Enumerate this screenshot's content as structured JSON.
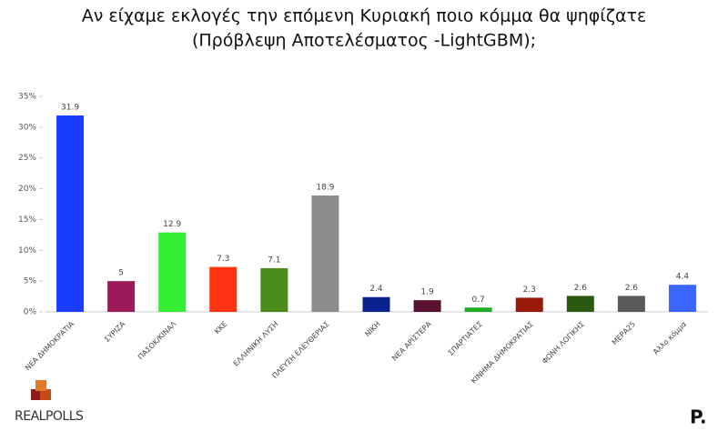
{
  "chart_data": {
    "type": "bar",
    "title": [
      "Αν είχαμε εκλογές την επόμενη Κυριακή ποιο κόμμα θα ψηφίζατε",
      "(Πρόβλεψη Αποτελέσματος -LightGBM);"
    ],
    "categories": [
      "ΝΕΑ ΔΗΜΟΚΡΑΤΙΑ",
      "ΣΥΡΙΖΑ",
      "ΠΑΣΟΚ/ΚΙΝΑΛ",
      "ΚΚΕ",
      "ΕΛΛΗΝΙΚΗ ΛΥΣΗ",
      "ΠΛΕΥΣΗ ΕΛΕΥΘΕΡΙΑΣ",
      "ΝΙΚΗ",
      "ΝΕΑ ΑΡΙΣΤΕΡΑ",
      "ΣΠΑΡΤΙΑΤΕΣ",
      "ΚΙΝΗΜΑ ΔΗΜΟΚΡΑΤΙΑΣ",
      "ΦΩΝΗ ΛΟΓΙΚΗΣ",
      "ΜΕΡΑ25",
      "Άλλο κόμμα"
    ],
    "values": [
      31.9,
      5,
      12.9,
      7.3,
      7.1,
      18.9,
      2.4,
      1.9,
      0.7,
      2.3,
      2.6,
      2.6,
      4.4
    ],
    "colors": [
      "#1a3cff",
      "#9b1b5a",
      "#33ee33",
      "#ff3311",
      "#4a8c1c",
      "#8c8c8c",
      "#0a2290",
      "#5a1030",
      "#22aa22",
      "#991a0a",
      "#2a5a10",
      "#5a5a5a",
      "#3a66ff"
    ],
    "ylim": [
      0,
      35
    ],
    "yticks": [
      {
        "value": 0,
        "label": "0%"
      },
      {
        "value": 5,
        "label": "5%"
      },
      {
        "value": 10,
        "label": "10%"
      },
      {
        "value": 15,
        "label": "15%"
      },
      {
        "value": 20,
        "label": "20%"
      },
      {
        "value": 25,
        "label": "25%"
      },
      {
        "value": 30,
        "label": "30%"
      },
      {
        "value": 35,
        "label": "35%"
      }
    ],
    "grid": false
  },
  "logo_left": "REALPOLLS",
  "logo_right": "P."
}
